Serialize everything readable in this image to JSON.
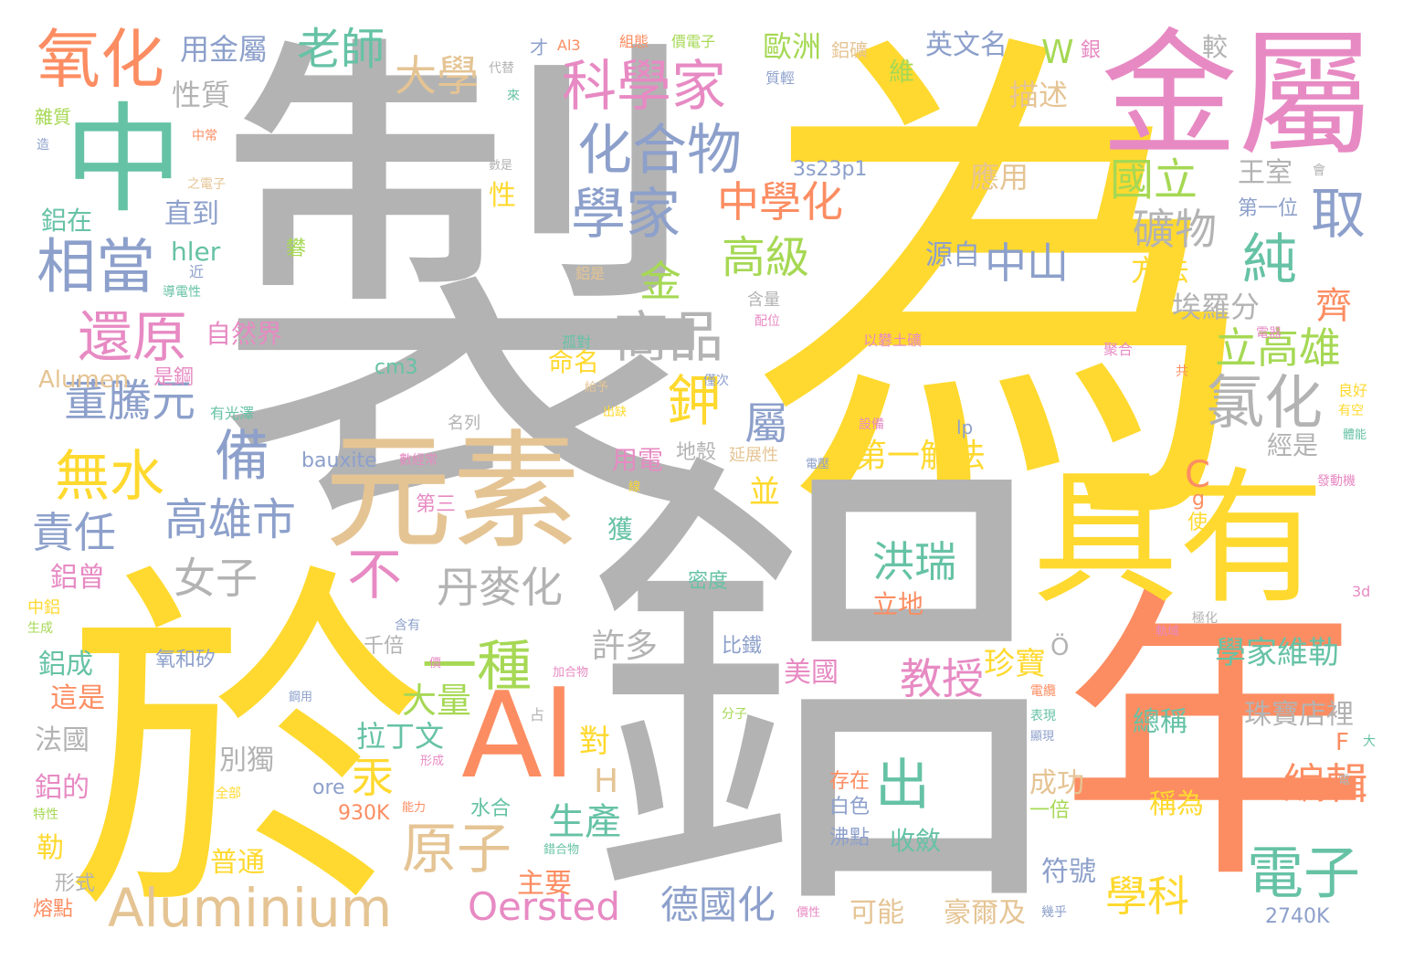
{
  "words": [
    {
      "text": "製",
      "color": "#b3b3b3"
    },
    {
      "text": "為",
      "color": "#ffd92f"
    },
    {
      "text": "鋁",
      "color": "#b3b3b3"
    },
    {
      "text": "於",
      "color": "#ffd92f"
    },
    {
      "text": "年",
      "color": "#fc8d62"
    },
    {
      "text": "金屬",
      "color": "#e78ac3"
    },
    {
      "text": "具有",
      "color": "#ffd92f"
    },
    {
      "text": "元素",
      "color": "#e5c494"
    },
    {
      "text": "中",
      "color": "#66c2a5"
    },
    {
      "text": "Al",
      "color": "#fc8d62"
    },
    {
      "text": "氧化",
      "color": "#fc8d62"
    },
    {
      "text": "科學家",
      "color": "#e78ac3"
    },
    {
      "text": "化合物",
      "color": "#8da0cb"
    },
    {
      "text": "學家",
      "color": "#8da0cb"
    },
    {
      "text": "相當",
      "color": "#8da0cb"
    },
    {
      "text": "還原",
      "color": "#e78ac3"
    },
    {
      "text": "Aluminium",
      "color": "#e5c494"
    },
    {
      "text": "電子",
      "color": "#66c2a5"
    },
    {
      "text": "原子",
      "color": "#e5c494"
    },
    {
      "text": "一種",
      "color": "#a6d854"
    },
    {
      "text": "出",
      "color": "#66c2a5"
    },
    {
      "text": "老師",
      "color": "#66c2a5"
    },
    {
      "text": "大學",
      "color": "#e5c494"
    },
    {
      "text": "用金屬",
      "color": "#8da0cb"
    },
    {
      "text": "性質",
      "color": "#b3b3b3"
    },
    {
      "text": "歐洲",
      "color": "#a6d854"
    },
    {
      "text": "英文名",
      "color": "#8da0cb"
    },
    {
      "text": "中學化",
      "color": "#fc8d62"
    },
    {
      "text": "國立",
      "color": "#a6d854"
    },
    {
      "text": "取",
      "color": "#8da0cb"
    },
    {
      "text": "純",
      "color": "#66c2a5"
    },
    {
      "text": "礦物",
      "color": "#b3b3b3"
    },
    {
      "text": "高級",
      "color": "#a6d854"
    },
    {
      "text": "中山",
      "color": "#8da0cb"
    },
    {
      "text": "商品",
      "color": "#b3b3b3"
    },
    {
      "text": "金",
      "color": "#a6d854"
    },
    {
      "text": "立高雄",
      "color": "#a6d854"
    },
    {
      "text": "氯化",
      "color": "#b3b3b3"
    },
    {
      "text": "鉀",
      "color": "#ffd92f"
    },
    {
      "text": "屬",
      "color": "#8da0cb"
    },
    {
      "text": "董騰元",
      "color": "#8da0cb"
    },
    {
      "text": "備",
      "color": "#8da0cb"
    },
    {
      "text": "無水",
      "color": "#ffd92f"
    },
    {
      "text": "高雄市",
      "color": "#8da0cb"
    },
    {
      "text": "責任",
      "color": "#8da0cb"
    },
    {
      "text": "女子",
      "color": "#b3b3b3"
    },
    {
      "text": "不",
      "color": "#e78ac3"
    },
    {
      "text": "丹麥化",
      "color": "#b3b3b3"
    },
    {
      "text": "洪瑞",
      "color": "#66c2a5"
    },
    {
      "text": "第一解法",
      "color": "#ffd92f"
    },
    {
      "text": "教授",
      "color": "#e78ac3"
    },
    {
      "text": "珍寶",
      "color": "#ffd92f"
    },
    {
      "text": "學家維勒",
      "color": "#66c2a5"
    },
    {
      "text": "編輯",
      "color": "#fc8d62"
    },
    {
      "text": "學科",
      "color": "#ffd92f"
    },
    {
      "text": "Oersted",
      "color": "#e78ac3"
    },
    {
      "text": "德國化",
      "color": "#8da0cb"
    },
    {
      "text": "汞",
      "color": "#ffd92f"
    },
    {
      "text": "生產",
      "color": "#66c2a5"
    },
    {
      "text": "大量",
      "color": "#a6d854"
    },
    {
      "text": "許多",
      "color": "#b3b3b3"
    },
    {
      "text": "拉丁文",
      "color": "#66c2a5"
    },
    {
      "text": "H",
      "color": "#e5c494"
    },
    {
      "text": "C",
      "color": "#fc8d62"
    },
    {
      "text": "齊",
      "color": "#fc8d62"
    },
    {
      "text": "W",
      "color": "#a6d854"
    },
    {
      "text": "應用",
      "color": "#e5c494"
    },
    {
      "text": "方法",
      "color": "#ffd92f"
    },
    {
      "text": "描述",
      "color": "#e5c494"
    },
    {
      "text": "埃羅分",
      "color": "#b3b3b3"
    },
    {
      "text": "源自",
      "color": "#8da0cb"
    },
    {
      "text": "王室",
      "color": "#b3b3b3"
    },
    {
      "text": "直到",
      "color": "#8da0cb"
    },
    {
      "text": "鋁在",
      "color": "#66c2a5"
    },
    {
      "text": "自然界",
      "color": "#e78ac3"
    },
    {
      "text": "hler",
      "color": "#66c2a5"
    },
    {
      "text": "Alumen",
      "color": "#e5c494"
    },
    {
      "text": "是鋼",
      "color": "#e78ac3"
    },
    {
      "text": "命名",
      "color": "#ffd92f"
    },
    {
      "text": "cm3",
      "color": "#66c2a5"
    },
    {
      "text": "bauxite",
      "color": "#8da0cb"
    },
    {
      "text": "用電",
      "color": "#e78ac3"
    },
    {
      "text": "地殼",
      "color": "#b3b3b3"
    },
    {
      "text": "並",
      "color": "#ffd92f"
    },
    {
      "text": "獲",
      "color": "#66c2a5"
    },
    {
      "text": "第三",
      "color": "#e78ac3"
    },
    {
      "text": "鋁曾",
      "color": "#e78ac3"
    },
    {
      "text": "鋁成",
      "color": "#66c2a5"
    },
    {
      "text": "這是",
      "color": "#fc8d62"
    },
    {
      "text": "法國",
      "color": "#b3b3b3"
    },
    {
      "text": "鋁的",
      "color": "#e78ac3"
    },
    {
      "text": "勒",
      "color": "#ffd92f"
    },
    {
      "text": "形式",
      "color": "#b3b3b3"
    },
    {
      "text": "熔點",
      "color": "#fc8d62"
    },
    {
      "text": "氧和矽",
      "color": "#8da0cb"
    },
    {
      "text": "千倍",
      "color": "#b3b3b3"
    },
    {
      "text": "比鐵",
      "color": "#8da0cb"
    },
    {
      "text": "美國",
      "color": "#e78ac3"
    },
    {
      "text": "別獨",
      "color": "#b3b3b3"
    },
    {
      "text": "對",
      "color": "#ffd92f"
    },
    {
      "text": "普通",
      "color": "#ffd92f"
    },
    {
      "text": "主要",
      "color": "#fc8d62"
    },
    {
      "text": "可能",
      "color": "#e5c494"
    },
    {
      "text": "豪爾及",
      "color": "#e5c494"
    },
    {
      "text": "成功",
      "color": "#e5c494"
    },
    {
      "text": "一倍",
      "color": "#a6d854"
    },
    {
      "text": "符號",
      "color": "#8da0cb"
    },
    {
      "text": "稱為",
      "color": "#ffd92f"
    },
    {
      "text": "總稱",
      "color": "#66c2a5"
    },
    {
      "text": "珠寶店裡",
      "color": "#b3b3b3"
    },
    {
      "text": "存在",
      "color": "#fc8d62"
    },
    {
      "text": "白色",
      "color": "#8da0cb"
    },
    {
      "text": "沸點",
      "color": "#8da0cb"
    },
    {
      "text": "收斂",
      "color": "#66c2a5"
    },
    {
      "text": "立地",
      "color": "#fc8d62"
    },
    {
      "text": "密度",
      "color": "#66c2a5"
    },
    {
      "text": "水合",
      "color": "#66c2a5"
    },
    {
      "text": "930K",
      "color": "#fc8d62"
    },
    {
      "text": "ore",
      "color": "#8da0cb"
    },
    {
      "text": "2740K",
      "color": "#8da0cb"
    },
    {
      "text": "3s23p1",
      "color": "#8da0cb"
    },
    {
      "text": "第一位",
      "color": "#8da0cb"
    },
    {
      "text": "經是",
      "color": "#b3b3b3"
    },
    {
      "text": "使",
      "color": "#ffd92f"
    },
    {
      "text": "F",
      "color": "#fc8d62"
    },
    {
      "text": "g",
      "color": "#fc8d62"
    },
    {
      "text": "Ö",
      "color": "#b3b3b3"
    },
    {
      "text": "lp",
      "color": "#8da0cb"
    },
    {
      "text": "雜質",
      "color": "#a6d854"
    },
    {
      "text": "性",
      "color": "#ffd92f"
    },
    {
      "text": "較",
      "color": "#b3b3b3"
    },
    {
      "text": "銀",
      "color": "#e78ac3"
    },
    {
      "text": "維",
      "color": "#a6d854"
    },
    {
      "text": "鋁礦",
      "color": "#e5c494"
    },
    {
      "text": "才",
      "color": "#8da0cb"
    },
    {
      "text": "Al3",
      "color": "#fc8d62"
    },
    {
      "text": "組態",
      "color": "#fc8d62"
    },
    {
      "text": "價電子",
      "color": "#a6d854"
    },
    {
      "text": "質輕",
      "color": "#8da0cb"
    },
    {
      "text": "代替",
      "color": "#b3b3b3"
    },
    {
      "text": "來",
      "color": "#66c2a5"
    },
    {
      "text": "中常",
      "color": "#fc8d62"
    },
    {
      "text": "造",
      "color": "#8da0cb"
    },
    {
      "text": "之電子",
      "color": "#e5c494"
    },
    {
      "text": "數是",
      "color": "#b3b3b3"
    },
    {
      "text": "礬",
      "color": "#a6d854"
    },
    {
      "text": "穩定",
      "color": "#b3b3b3"
    },
    {
      "text": "近",
      "color": "#8da0cb"
    },
    {
      "text": "導電性",
      "color": "#66c2a5"
    },
    {
      "text": "鋁是",
      "color": "#e5c494"
    },
    {
      "text": "含量",
      "color": "#b3b3b3"
    },
    {
      "text": "配位",
      "color": "#e78ac3"
    },
    {
      "text": "孤對",
      "color": "#66c2a5"
    },
    {
      "text": "以礬土礦",
      "color": "#e78ac3"
    },
    {
      "text": "聚合",
      "color": "#e78ac3"
    },
    {
      "text": "電器",
      "color": "#e78ac3"
    },
    {
      "text": "會",
      "color": "#b3b3b3"
    },
    {
      "text": "共",
      "color": "#fc8d62"
    },
    {
      "text": "良好",
      "color": "#ffd92f"
    },
    {
      "text": "有空",
      "color": "#ffd92f"
    },
    {
      "text": "體能",
      "color": "#66c2a5"
    },
    {
      "text": "有光澤",
      "color": "#66c2a5"
    },
    {
      "text": "名列",
      "color": "#b3b3b3"
    },
    {
      "text": "僅次",
      "color": "#8da0cb"
    },
    {
      "text": "給予",
      "color": "#e5c494"
    },
    {
      "text": "出缺",
      "color": "#ffd92f"
    },
    {
      "text": "設備",
      "color": "#e78ac3"
    },
    {
      "text": "延展性",
      "color": "#e5c494"
    },
    {
      "text": "數經常",
      "color": "#e78ac3"
    },
    {
      "text": "電壓",
      "color": "#8da0cb"
    },
    {
      "text": "線",
      "color": "#ffd92f"
    },
    {
      "text": "發動機",
      "color": "#e78ac3"
    },
    {
      "text": "中鋁",
      "color": "#ffd92f"
    },
    {
      "text": "生成",
      "color": "#a6d854"
    },
    {
      "text": "含有",
      "color": "#8da0cb"
    },
    {
      "text": "價",
      "color": "#e78ac3"
    },
    {
      "text": "加合物",
      "color": "#e78ac3"
    },
    {
      "text": "占",
      "color": "#b3b3b3"
    },
    {
      "text": "鋼用",
      "color": "#8da0cb"
    },
    {
      "text": "分子",
      "color": "#a6d854"
    },
    {
      "text": "形成",
      "color": "#e78ac3"
    },
    {
      "text": "全部",
      "color": "#ffd92f"
    },
    {
      "text": "能力",
      "color": "#fc8d62"
    },
    {
      "text": "錯合物",
      "color": "#66c2a5"
    },
    {
      "text": "特性",
      "color": "#a6d854"
    },
    {
      "text": "極化",
      "color": "#b3b3b3"
    },
    {
      "text": "軌域",
      "color": "#e78ac3"
    },
    {
      "text": "電纜",
      "color": "#fc8d62"
    },
    {
      "text": "表現",
      "color": "#66c2a5"
    },
    {
      "text": "顯現",
      "color": "#8da0cb"
    },
    {
      "text": "電",
      "color": "#b3b3b3"
    },
    {
      "text": "大",
      "color": "#66c2a5"
    },
    {
      "text": "幾乎",
      "color": "#8da0cb"
    },
    {
      "text": "價性",
      "color": "#e78ac3"
    },
    {
      "text": "3d",
      "color": "#e78ac3"
    }
  ]
}
